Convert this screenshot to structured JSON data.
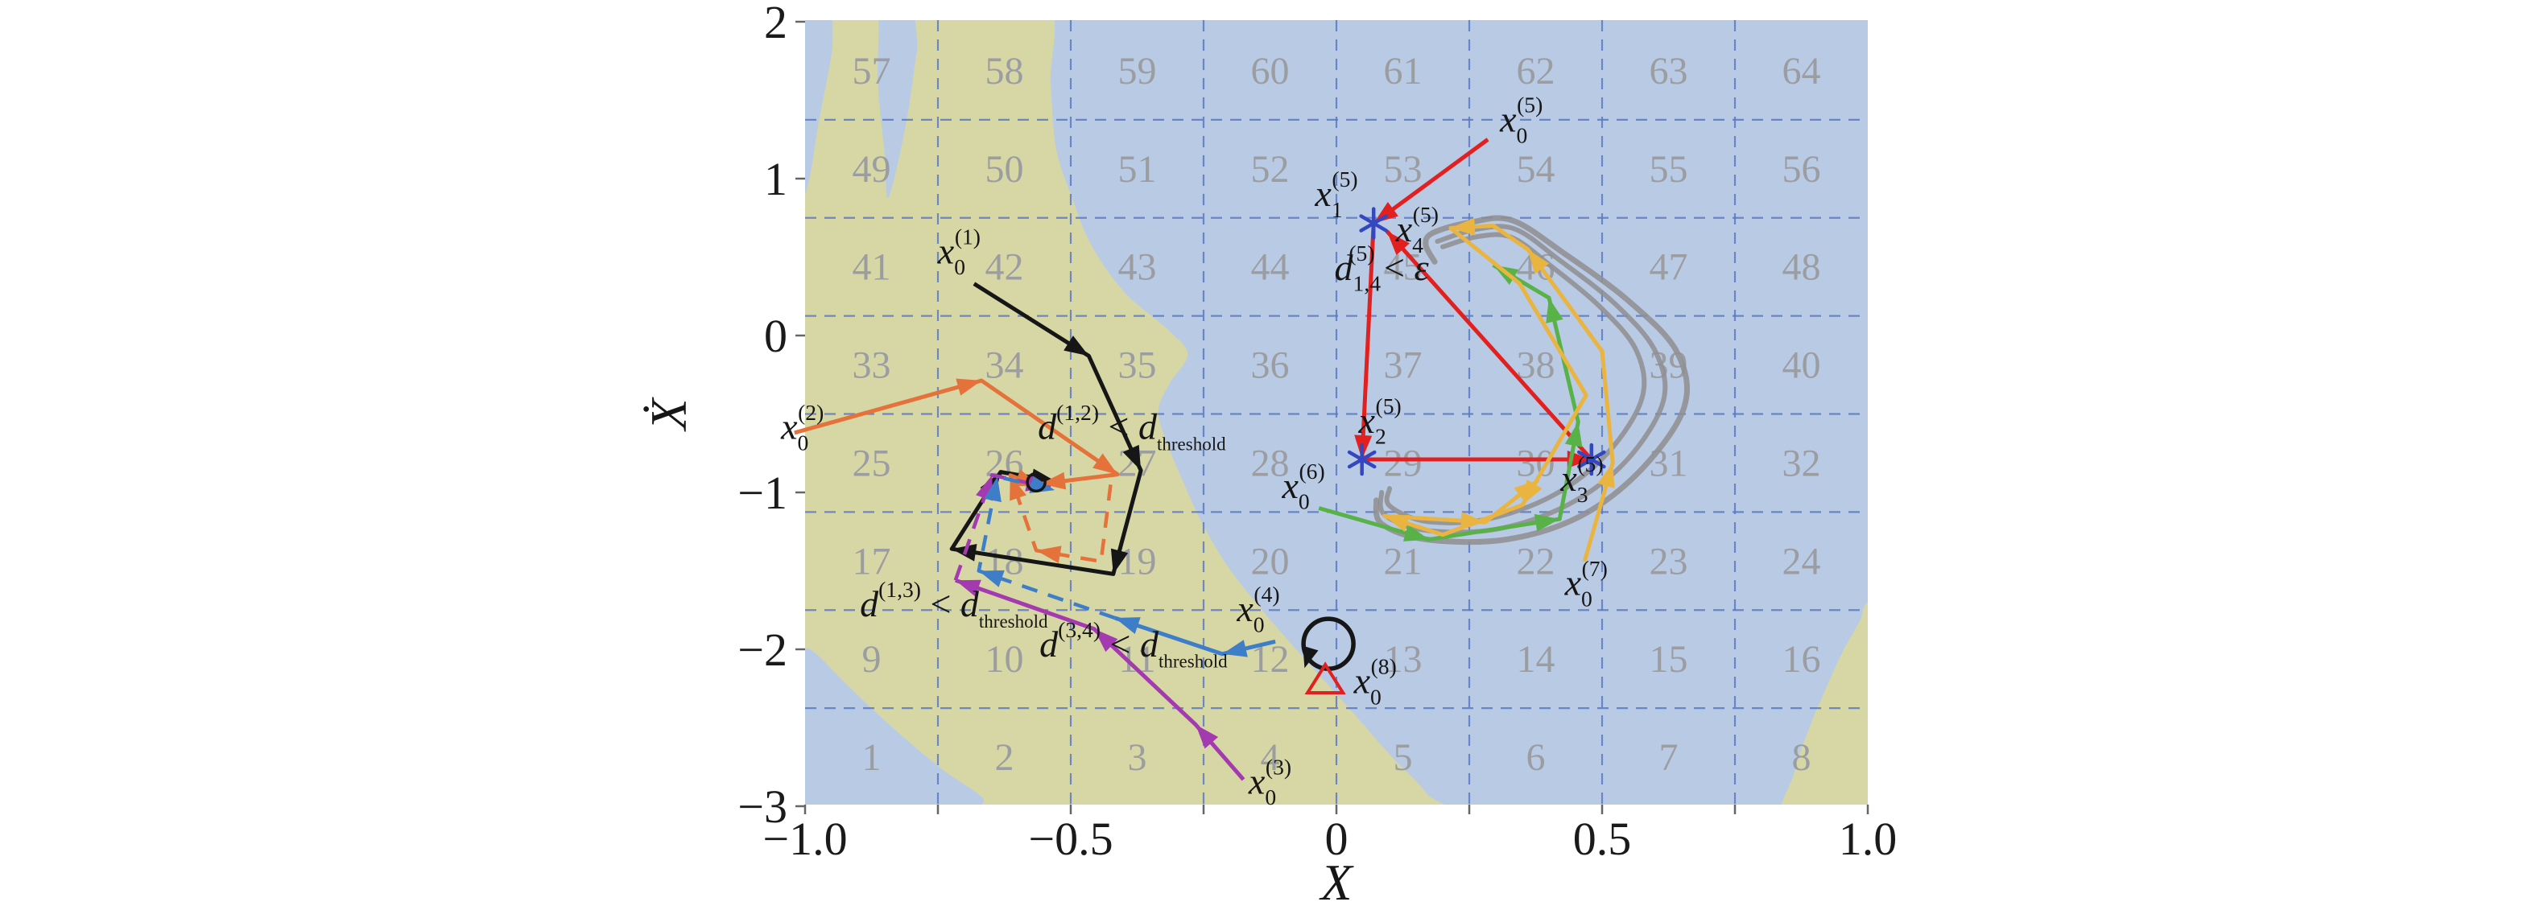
{
  "figure": {
    "kind": "phase-space trajectory figure with numbered cell partition",
    "colors": {
      "background_blue": "#b9cae5",
      "background_khaki": "#d7d7a6",
      "grid": "#5b7ac6",
      "cell_number": "#9b9da1",
      "black": "#161616",
      "orange": "#e5713b",
      "purple": "#a33ab0",
      "blue": "#3e7ec8",
      "red": "#e2201f",
      "green": "#59b248",
      "yellow": "#e9b440",
      "gray_attractor": "#8f9092",
      "asterisk": "#3547c0",
      "tick_text": "#1a1a1a"
    }
  },
  "chart_data": {
    "type": "line",
    "title": "",
    "xlabel": "X",
    "ylabel": "Ẋ",
    "xlim": [
      -1.0,
      1.0
    ],
    "ylim": [
      -3.0,
      2.0
    ],
    "grid": true,
    "x_ticks": [
      {
        "v": -1.0,
        "label": "−1.0"
      },
      {
        "v": -0.5,
        "label": "−0.5"
      },
      {
        "v": 0.0,
        "label": "0"
      },
      {
        "v": 0.5,
        "label": "0.5"
      },
      {
        "v": 1.0,
        "label": "1.0"
      }
    ],
    "y_ticks": [
      {
        "v": 2,
        "label": "2"
      },
      {
        "v": 1,
        "label": "1"
      },
      {
        "v": 0,
        "label": "0"
      },
      {
        "v": -1,
        "label": "−1"
      },
      {
        "v": -2,
        "label": "−2"
      },
      {
        "v": -3,
        "label": "−3"
      }
    ],
    "grid_x_lines": [
      -0.75,
      -0.5,
      -0.25,
      0,
      0.25,
      0.5,
      0.75
    ],
    "grid_y_lines": [
      -2.375,
      -1.75,
      -1.125,
      -0.5,
      0.125,
      0.75,
      1.375
    ],
    "cells": [
      1,
      2,
      3,
      4,
      5,
      6,
      7,
      8,
      9,
      10,
      11,
      12,
      13,
      14,
      15,
      16,
      17,
      18,
      19,
      20,
      21,
      22,
      23,
      24,
      25,
      26,
      27,
      28,
      29,
      30,
      31,
      32,
      33,
      34,
      35,
      36,
      37,
      38,
      39,
      40,
      41,
      42,
      43,
      44,
      45,
      46,
      47,
      48,
      49,
      50,
      51,
      52,
      53,
      54,
      55,
      56,
      57,
      58,
      59,
      60,
      61,
      62,
      63,
      64
    ],
    "regions": {
      "khaki_main": [
        [
          -1.06,
          0.5
        ],
        [
          -1.0,
          0.9
        ],
        [
          -0.975,
          1.35
        ],
        [
          -0.95,
          1.8
        ],
        [
          -0.94,
          2.15
        ],
        [
          -0.868,
          2.15
        ],
        [
          -0.863,
          1.6
        ],
        [
          -0.85,
          1.15
        ],
        [
          -0.843,
          0.88
        ],
        [
          -0.81,
          1.35
        ],
        [
          -0.79,
          1.8
        ],
        [
          -0.77,
          2.15
        ],
        [
          -0.55,
          2.15
        ],
        [
          -0.538,
          1.6
        ],
        [
          -0.528,
          1.2
        ],
        [
          -0.5,
          0.9
        ],
        [
          -0.462,
          0.58
        ],
        [
          -0.4,
          0.28
        ],
        [
          -0.315,
          0.03
        ],
        [
          -0.28,
          -0.12
        ],
        [
          -0.313,
          -0.3
        ],
        [
          -0.335,
          -0.47
        ],
        [
          -0.323,
          -0.65
        ],
        [
          -0.29,
          -0.92
        ],
        [
          -0.255,
          -1.18
        ],
        [
          -0.205,
          -1.47
        ],
        [
          -0.135,
          -1.77
        ],
        [
          -0.055,
          -2.08
        ],
        [
          0.025,
          -2.38
        ],
        [
          0.1,
          -2.67
        ],
        [
          0.17,
          -2.92
        ],
        [
          0.2,
          -3.15
        ],
        [
          -0.63,
          -3.15
        ],
        [
          -0.665,
          -2.95
        ],
        [
          -0.74,
          -2.77
        ],
        [
          -0.835,
          -2.5
        ],
        [
          -0.92,
          -2.23
        ],
        [
          -0.99,
          -2.0
        ],
        [
          -1.06,
          -1.9
        ]
      ],
      "khaki_bottom_right": [
        [
          1.06,
          -1.62
        ],
        [
          1.0,
          -1.7
        ],
        [
          0.985,
          -1.82
        ],
        [
          0.955,
          -2.0
        ],
        [
          0.925,
          -2.22
        ],
        [
          0.89,
          -2.5
        ],
        [
          0.862,
          -2.78
        ],
        [
          0.845,
          -3.15
        ],
        [
          1.06,
          -3.15
        ]
      ]
    },
    "attractor_strands": [
      [
        [
          0.185,
          0.47
        ],
        [
          0.168,
          0.58
        ],
        [
          0.182,
          0.655
        ],
        [
          0.25,
          0.72
        ],
        [
          0.33,
          0.735
        ],
        [
          0.43,
          0.52
        ],
        [
          0.55,
          0.22
        ],
        [
          0.64,
          -0.1
        ],
        [
          0.655,
          -0.45
        ],
        [
          0.575,
          -0.85
        ],
        [
          0.46,
          -1.15
        ],
        [
          0.32,
          -1.3
        ],
        [
          0.17,
          -1.3
        ],
        [
          0.085,
          -1.2
        ],
        [
          0.075,
          -1.05
        ]
      ],
      [
        [
          0.19,
          0.6
        ],
        [
          0.26,
          0.675
        ],
        [
          0.335,
          0.68
        ],
        [
          0.42,
          0.48
        ],
        [
          0.525,
          0.2
        ],
        [
          0.6,
          -0.1
        ],
        [
          0.615,
          -0.42
        ],
        [
          0.545,
          -0.8
        ],
        [
          0.435,
          -1.08
        ],
        [
          0.3,
          -1.235
        ],
        [
          0.165,
          -1.24
        ],
        [
          0.09,
          -1.14
        ],
        [
          0.085,
          -1.0
        ]
      ],
      [
        [
          0.2,
          0.565
        ],
        [
          0.265,
          0.63
        ],
        [
          0.33,
          0.625
        ],
        [
          0.405,
          0.44
        ],
        [
          0.5,
          0.17
        ],
        [
          0.565,
          -0.1
        ],
        [
          0.575,
          -0.4
        ],
        [
          0.51,
          -0.75
        ],
        [
          0.41,
          -1.015
        ],
        [
          0.285,
          -1.17
        ],
        [
          0.17,
          -1.185
        ],
        [
          0.1,
          -1.085
        ],
        [
          0.1,
          -0.975
        ]
      ]
    ],
    "series": [
      {
        "id": "trajectory-1-solid",
        "color": "#161616",
        "w": 5,
        "style": "solid",
        "pts": [
          [
            -0.682,
            0.33
          ],
          [
            -0.466,
            -0.13
          ],
          [
            -0.368,
            -0.86
          ],
          [
            -0.42,
            -1.52
          ],
          [
            -0.724,
            -1.36
          ],
          [
            -0.632,
            -0.87
          ],
          [
            -0.528,
            -0.93
          ]
        ],
        "arrows": [
          1,
          2,
          3,
          4,
          5,
          6
        ]
      },
      {
        "id": "trajectory-2-solid",
        "color": "#e5713b",
        "w": 5,
        "style": "solid",
        "pts": [
          [
            -1.02,
            -0.62
          ],
          [
            -0.668,
            -0.287
          ],
          [
            -0.412,
            -0.885
          ],
          [
            -0.556,
            -0.945
          ]
        ],
        "arrows": [
          1,
          2,
          3
        ]
      },
      {
        "id": "trajectory-2-dashed",
        "color": "#e5713b",
        "w": 4.5,
        "style": "dashed",
        "pts": [
          [
            -0.425,
            -0.95
          ],
          [
            -0.443,
            -1.44
          ],
          [
            -0.565,
            -1.37
          ],
          [
            -0.614,
            -0.89
          ],
          [
            -0.558,
            -0.96
          ]
        ],
        "arrows": [
          2,
          3,
          4
        ]
      },
      {
        "id": "trajectory-3-solid",
        "color": "#a33ab0",
        "w": 5,
        "style": "solid",
        "pts": [
          [
            -0.175,
            -2.83
          ],
          [
            -0.265,
            -2.48
          ],
          [
            -0.456,
            -1.87
          ],
          [
            -0.717,
            -1.56
          ]
        ],
        "arrows": [
          1,
          2,
          3
        ]
      },
      {
        "id": "trajectory-3-dashed",
        "color": "#a33ab0",
        "w": 4.5,
        "style": "dashed",
        "pts": [
          [
            -0.717,
            -1.56
          ],
          [
            -0.648,
            -0.89
          ],
          [
            -0.538,
            -0.97
          ]
        ],
        "arrows": [
          1,
          2
        ]
      },
      {
        "id": "trajectory-4-solid",
        "color": "#3e7ec8",
        "w": 5,
        "style": "solid",
        "pts": [
          [
            -0.115,
            -1.95
          ],
          [
            -0.215,
            -2.03
          ],
          [
            -0.417,
            -1.8
          ]
        ],
        "arrows": [
          1,
          2
        ]
      },
      {
        "id": "trajectory-4-dashed",
        "color": "#3e7ec8",
        "w": 4.5,
        "style": "dashed",
        "pts": [
          [
            -0.417,
            -1.8
          ],
          [
            -0.673,
            -1.5
          ],
          [
            -0.638,
            -0.9
          ],
          [
            -0.53,
            -0.985
          ]
        ],
        "arrows": [
          1,
          2,
          3
        ]
      },
      {
        "id": "trajectory-5-red",
        "color": "#e2201f",
        "w": 5,
        "style": "solid",
        "pts": [
          [
            0.285,
            1.25
          ],
          [
            0.07,
            0.715
          ],
          [
            0.048,
            -0.79
          ],
          [
            0.48,
            -0.79
          ],
          [
            0.095,
            0.665
          ]
        ],
        "arrows": [
          1,
          2,
          3,
          4
        ]
      },
      {
        "id": "trajectory-6-green",
        "color": "#59b248",
        "w": 5,
        "style": "solid",
        "pts": [
          [
            -0.033,
            -1.1
          ],
          [
            0.174,
            -1.3
          ],
          [
            0.42,
            -1.17
          ],
          [
            0.455,
            -0.55
          ],
          [
            0.4,
            0.24
          ],
          [
            0.295,
            0.45
          ]
        ],
        "arrows": [
          1,
          2,
          3,
          4,
          5
        ]
      },
      {
        "id": "trajectory-7-yellow",
        "color": "#e9b440",
        "w": 5,
        "style": "solid",
        "pts": [
          [
            0.467,
            -1.44
          ],
          [
            0.52,
            -0.81
          ],
          [
            0.5,
            -0.1
          ],
          [
            0.36,
            0.55
          ],
          [
            0.295,
            0.7
          ],
          [
            0.215,
            0.685
          ],
          [
            0.345,
            0.33
          ],
          [
            0.47,
            -0.38
          ],
          [
            0.35,
            -1.08
          ],
          [
            0.2,
            -1.27
          ],
          [
            0.09,
            -1.15
          ],
          [
            0.28,
            -1.19
          ],
          [
            0.38,
            -0.92
          ]
        ],
        "arrows": [
          1,
          3,
          5,
          8,
          10,
          11,
          12
        ]
      }
    ],
    "markers": {
      "asterisks": [
        [
          0.07,
          0.715
        ],
        [
          0.048,
          -0.79
        ],
        [
          0.48,
          -0.79
        ]
      ],
      "small_circle": {
        "x": -0.565,
        "y": -0.935,
        "r": 11
      },
      "loop_circle": {
        "x": -0.015,
        "y": -1.965,
        "r": 31
      },
      "red_triangle": {
        "x": -0.021,
        "y": -2.2
      }
    },
    "annotations": [
      {
        "id": "label-x0-1",
        "x": -0.71,
        "y": 0.46,
        "tokens": [
          {
            "t": "x",
            "i": 1
          },
          {
            "t": "0",
            "v": "d"
          },
          {
            "t": "(1)",
            "v": "u",
            "st": 1
          }
        ]
      },
      {
        "id": "label-x0-2",
        "x": -1.005,
        "y": -0.66,
        "tokens": [
          {
            "t": "x",
            "i": 1
          },
          {
            "t": "0",
            "v": "d"
          },
          {
            "t": "(2)",
            "v": "u",
            "st": 1
          }
        ]
      },
      {
        "id": "label-x0-3",
        "x": -0.125,
        "y": -2.92,
        "tokens": [
          {
            "t": "x",
            "i": 1
          },
          {
            "t": "0",
            "v": "d"
          },
          {
            "t": "(3)",
            "v": "u",
            "st": 1
          }
        ]
      },
      {
        "id": "label-x0-4",
        "x": -0.147,
        "y": -1.82,
        "tokens": [
          {
            "t": "x",
            "i": 1
          },
          {
            "t": "0",
            "v": "d"
          },
          {
            "t": "(4)",
            "v": "u",
            "st": 1
          }
        ]
      },
      {
        "id": "label-x0-5",
        "x": 0.348,
        "y": 1.3,
        "tokens": [
          {
            "t": "x",
            "i": 1
          },
          {
            "t": "0",
            "v": "d"
          },
          {
            "t": "(5)",
            "v": "u",
            "st": 1
          }
        ]
      },
      {
        "id": "label-x1-5",
        "x": 0.0,
        "y": 0.825,
        "tokens": [
          {
            "t": "x",
            "i": 1
          },
          {
            "t": "1",
            "v": "d"
          },
          {
            "t": "(5)",
            "v": "u",
            "st": 1
          }
        ]
      },
      {
        "id": "label-x2-5",
        "x": 0.082,
        "y": -0.62,
        "tokens": [
          {
            "t": "x",
            "i": 1
          },
          {
            "t": "2",
            "v": "d"
          },
          {
            "t": "(5)",
            "v": "u",
            "st": 1
          }
        ]
      },
      {
        "id": "label-x3-5",
        "x": 0.462,
        "y": -0.99,
        "tokens": [
          {
            "t": "x",
            "i": 1
          },
          {
            "t": "3",
            "v": "d"
          },
          {
            "t": "(5)",
            "v": "u",
            "st": 1
          }
        ]
      },
      {
        "id": "label-x4-5",
        "x": 0.152,
        "y": 0.6,
        "tokens": [
          {
            "t": "x",
            "i": 1
          },
          {
            "t": "4",
            "v": "d"
          },
          {
            "t": "(5)",
            "v": "u",
            "st": 1
          }
        ]
      },
      {
        "id": "label-x0-6",
        "x": -0.062,
        "y": -1.035,
        "tokens": [
          {
            "t": "x",
            "i": 1
          },
          {
            "t": "0",
            "v": "d"
          },
          {
            "t": "(6)",
            "v": "u",
            "st": 1
          }
        ]
      },
      {
        "id": "label-x0-7",
        "x": 0.47,
        "y": -1.655,
        "tokens": [
          {
            "t": "x",
            "i": 1
          },
          {
            "t": "0",
            "v": "d"
          },
          {
            "t": "(7)",
            "v": "u",
            "st": 1
          }
        ]
      },
      {
        "id": "label-x0-8",
        "x": 0.073,
        "y": -2.28,
        "tokens": [
          {
            "t": "x",
            "i": 1
          },
          {
            "t": "0",
            "v": "d"
          },
          {
            "t": "(8)",
            "v": "u",
            "st": 1
          }
        ]
      },
      {
        "id": "label-d12",
        "x": -0.385,
        "y": -0.66,
        "tokens": [
          {
            "t": "d",
            "i": 1
          },
          {
            "t": "(1,2)",
            "v": "u"
          },
          {
            "t": " < ",
            "i": 0
          },
          {
            "t": "d",
            "i": 1
          },
          {
            "t": "threshold",
            "v": "d",
            "s": 0.5
          }
        ]
      },
      {
        "id": "label-d13",
        "x": -0.72,
        "y": -1.79,
        "tokens": [
          {
            "t": "d",
            "i": 1
          },
          {
            "t": "(1,3)",
            "v": "u"
          },
          {
            "t": " < ",
            "i": 0
          },
          {
            "t": "d",
            "i": 1
          },
          {
            "t": "threshold",
            "v": "d",
            "s": 0.5
          }
        ]
      },
      {
        "id": "label-d34",
        "x": -0.382,
        "y": -2.045,
        "tokens": [
          {
            "t": "d",
            "i": 1
          },
          {
            "t": "(3,4)",
            "v": "u"
          },
          {
            "t": " < ",
            "i": 0
          },
          {
            "t": "d",
            "i": 1
          },
          {
            "t": "threshold",
            "v": "d",
            "s": 0.5
          }
        ]
      },
      {
        "id": "label-d14",
        "x": 0.085,
        "y": 0.355,
        "tokens": [
          {
            "t": "d",
            "i": 1
          },
          {
            "t": "1,4",
            "v": "d"
          },
          {
            "t": "(5)",
            "v": "u",
            "st": 1
          },
          {
            "t": " < ",
            "i": 0
          },
          {
            "t": "ε",
            "i": 1
          }
        ]
      }
    ]
  }
}
